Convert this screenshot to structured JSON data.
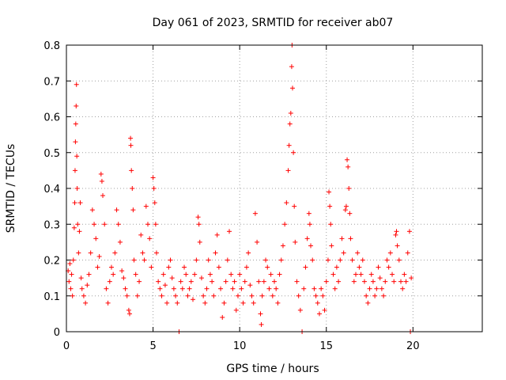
{
  "chart_data": {
    "type": "scatter",
    "title": "Day 061 of 2023, SRMTID for receiver ab07",
    "xlabel": "GPS time / hours",
    "ylabel": "SRMTID / TECUs",
    "xlim": [
      0,
      24
    ],
    "ylim": [
      0,
      0.8
    ],
    "xticks": [
      0,
      5,
      10,
      15,
      20
    ],
    "yticks": [
      0,
      0.1,
      0.2,
      0.3,
      0.4,
      0.5,
      0.6,
      0.7,
      0.8
    ],
    "grid": true,
    "marker": "+",
    "color": "#ff0000",
    "series": [
      {
        "name": "SRMTID",
        "points": [
          [
            0.1,
            0.17
          ],
          [
            0.15,
            0.14
          ],
          [
            0.2,
            0.19
          ],
          [
            0.25,
            0.12
          ],
          [
            0.3,
            0.16
          ],
          [
            0.35,
            0.1
          ],
          [
            0.4,
            0.2
          ],
          [
            0.45,
            0.29
          ],
          [
            0.48,
            0.36
          ],
          [
            0.5,
            0.45
          ],
          [
            0.52,
            0.53
          ],
          [
            0.54,
            0.58
          ],
          [
            0.56,
            0.63
          ],
          [
            0.58,
            0.69
          ],
          [
            0.6,
            0.49
          ],
          [
            0.62,
            0.4
          ],
          [
            0.65,
            0.3
          ],
          [
            0.7,
            0.22
          ],
          [
            0.75,
            0.28
          ],
          [
            0.8,
            0.36
          ],
          [
            0.85,
            0.15
          ],
          [
            0.9,
            0.12
          ],
          [
            1.0,
            0.1
          ],
          [
            1.1,
            0.08
          ],
          [
            1.2,
            0.13
          ],
          [
            1.3,
            0.16
          ],
          [
            1.4,
            0.22
          ],
          [
            1.5,
            0.34
          ],
          [
            1.6,
            0.3
          ],
          [
            1.7,
            0.26
          ],
          [
            1.8,
            0.18
          ],
          [
            1.9,
            0.21
          ],
          [
            2.0,
            0.44
          ],
          [
            2.05,
            0.42
          ],
          [
            2.1,
            0.38
          ],
          [
            2.2,
            0.3
          ],
          [
            2.3,
            0.12
          ],
          [
            2.4,
            0.08
          ],
          [
            2.5,
            0.14
          ],
          [
            2.6,
            0.18
          ],
          [
            2.7,
            0.16
          ],
          [
            2.8,
            0.22
          ],
          [
            2.9,
            0.34
          ],
          [
            3.0,
            0.3
          ],
          [
            3.1,
            0.25
          ],
          [
            3.2,
            0.17
          ],
          [
            3.3,
            0.15
          ],
          [
            3.4,
            0.12
          ],
          [
            3.5,
            0.1
          ],
          [
            3.6,
            0.06
          ],
          [
            3.65,
            0.05
          ],
          [
            3.7,
            0.54
          ],
          [
            3.72,
            0.52
          ],
          [
            3.75,
            0.45
          ],
          [
            3.8,
            0.4
          ],
          [
            3.85,
            0.34
          ],
          [
            3.9,
            0.2
          ],
          [
            4.0,
            0.16
          ],
          [
            4.1,
            0.1
          ],
          [
            4.2,
            0.14
          ],
          [
            4.3,
            0.27
          ],
          [
            4.4,
            0.22
          ],
          [
            4.5,
            0.2
          ],
          [
            4.6,
            0.35
          ],
          [
            4.7,
            0.3
          ],
          [
            4.8,
            0.26
          ],
          [
            4.9,
            0.18
          ],
          [
            5.0,
            0.43
          ],
          [
            5.05,
            0.4
          ],
          [
            5.1,
            0.36
          ],
          [
            5.15,
            0.3
          ],
          [
            5.2,
            0.22
          ],
          [
            5.3,
            0.14
          ],
          [
            5.4,
            0.12
          ],
          [
            5.5,
            0.1
          ],
          [
            5.6,
            0.16
          ],
          [
            5.7,
            0.13
          ],
          [
            5.8,
            0.08
          ],
          [
            5.9,
            0.18
          ],
          [
            6.0,
            0.2
          ],
          [
            6.1,
            0.15
          ],
          [
            6.2,
            0.12
          ],
          [
            6.3,
            0.1
          ],
          [
            6.4,
            0.08
          ],
          [
            6.5,
            0.0
          ],
          [
            6.6,
            0.14
          ],
          [
            6.7,
            0.12
          ],
          [
            6.8,
            0.18
          ],
          [
            6.9,
            0.16
          ],
          [
            7.0,
            0.1
          ],
          [
            7.1,
            0.12
          ],
          [
            7.2,
            0.14
          ],
          [
            7.3,
            0.09
          ],
          [
            7.4,
            0.16
          ],
          [
            7.5,
            0.2
          ],
          [
            7.6,
            0.32
          ],
          [
            7.65,
            0.3
          ],
          [
            7.7,
            0.25
          ],
          [
            7.8,
            0.15
          ],
          [
            7.9,
            0.1
          ],
          [
            8.0,
            0.08
          ],
          [
            8.1,
            0.12
          ],
          [
            8.2,
            0.2
          ],
          [
            8.3,
            0.16
          ],
          [
            8.4,
            0.14
          ],
          [
            8.5,
            0.1
          ],
          [
            8.6,
            0.22
          ],
          [
            8.7,
            0.27
          ],
          [
            8.8,
            0.18
          ],
          [
            8.9,
            0.12
          ],
          [
            9.0,
            0.04
          ],
          [
            9.1,
            0.08
          ],
          [
            9.2,
            0.14
          ],
          [
            9.3,
            0.2
          ],
          [
            9.4,
            0.28
          ],
          [
            9.5,
            0.16
          ],
          [
            9.6,
            0.12
          ],
          [
            9.7,
            0.14
          ],
          [
            9.8,
            0.06
          ],
          [
            9.9,
            0.1
          ],
          [
            10.0,
            0.16
          ],
          [
            10.1,
            0.12
          ],
          [
            10.2,
            0.08
          ],
          [
            10.3,
            0.14
          ],
          [
            10.4,
            0.18
          ],
          [
            10.5,
            0.22
          ],
          [
            10.6,
            0.13
          ],
          [
            10.7,
            0.1
          ],
          [
            10.8,
            0.08
          ],
          [
            10.9,
            0.33
          ],
          [
            11.0,
            0.25
          ],
          [
            11.1,
            0.14
          ],
          [
            11.2,
            0.05
          ],
          [
            11.25,
            0.02
          ],
          [
            11.3,
            0.1
          ],
          [
            11.4,
            0.14
          ],
          [
            11.5,
            0.2
          ],
          [
            11.6,
            0.18
          ],
          [
            11.7,
            0.12
          ],
          [
            11.8,
            0.16
          ],
          [
            11.9,
            0.1
          ],
          [
            12.0,
            0.14
          ],
          [
            12.1,
            0.12
          ],
          [
            12.2,
            0.08
          ],
          [
            12.3,
            0.16
          ],
          [
            12.4,
            0.2
          ],
          [
            12.5,
            0.24
          ],
          [
            12.6,
            0.3
          ],
          [
            12.7,
            0.36
          ],
          [
            12.8,
            0.45
          ],
          [
            12.85,
            0.52
          ],
          [
            12.9,
            0.58
          ],
          [
            12.95,
            0.61
          ],
          [
            13.0,
            0.74
          ],
          [
            13.02,
            0.8
          ],
          [
            13.05,
            0.68
          ],
          [
            13.1,
            0.5
          ],
          [
            13.15,
            0.35
          ],
          [
            13.2,
            0.25
          ],
          [
            13.3,
            0.14
          ],
          [
            13.4,
            0.1
          ],
          [
            13.5,
            0.06
          ],
          [
            13.6,
            0.0
          ],
          [
            13.7,
            0.12
          ],
          [
            13.8,
            0.18
          ],
          [
            13.9,
            0.26
          ],
          [
            14.0,
            0.33
          ],
          [
            14.05,
            0.3
          ],
          [
            14.1,
            0.24
          ],
          [
            14.2,
            0.2
          ],
          [
            14.3,
            0.12
          ],
          [
            14.4,
            0.1
          ],
          [
            14.5,
            0.08
          ],
          [
            14.6,
            0.05
          ],
          [
            14.7,
            0.12
          ],
          [
            14.8,
            0.1
          ],
          [
            14.9,
            0.06
          ],
          [
            15.0,
            0.14
          ],
          [
            15.1,
            0.2
          ],
          [
            15.15,
            0.39
          ],
          [
            15.2,
            0.35
          ],
          [
            15.25,
            0.3
          ],
          [
            15.3,
            0.24
          ],
          [
            15.4,
            0.16
          ],
          [
            15.5,
            0.12
          ],
          [
            15.6,
            0.18
          ],
          [
            15.7,
            0.14
          ],
          [
            15.8,
            0.2
          ],
          [
            15.9,
            0.26
          ],
          [
            16.0,
            0.22
          ],
          [
            16.1,
            0.34
          ],
          [
            16.15,
            0.35
          ],
          [
            16.2,
            0.48
          ],
          [
            16.25,
            0.46
          ],
          [
            16.3,
            0.4
          ],
          [
            16.35,
            0.33
          ],
          [
            16.4,
            0.26
          ],
          [
            16.5,
            0.2
          ],
          [
            16.6,
            0.14
          ],
          [
            16.7,
            0.16
          ],
          [
            16.8,
            0.22
          ],
          [
            16.9,
            0.18
          ],
          [
            17.0,
            0.16
          ],
          [
            17.1,
            0.2
          ],
          [
            17.2,
            0.14
          ],
          [
            17.3,
            0.1
          ],
          [
            17.4,
            0.08
          ],
          [
            17.5,
            0.12
          ],
          [
            17.6,
            0.16
          ],
          [
            17.7,
            0.14
          ],
          [
            17.8,
            0.1
          ],
          [
            17.9,
            0.12
          ],
          [
            18.0,
            0.18
          ],
          [
            18.1,
            0.15
          ],
          [
            18.2,
            0.12
          ],
          [
            18.3,
            0.1
          ],
          [
            18.4,
            0.14
          ],
          [
            18.5,
            0.2
          ],
          [
            18.6,
            0.18
          ],
          [
            18.7,
            0.22
          ],
          [
            18.8,
            0.16
          ],
          [
            18.9,
            0.14
          ],
          [
            19.0,
            0.27
          ],
          [
            19.05,
            0.28
          ],
          [
            19.1,
            0.24
          ],
          [
            19.2,
            0.2
          ],
          [
            19.3,
            0.14
          ],
          [
            19.4,
            0.12
          ],
          [
            19.5,
            0.16
          ],
          [
            19.6,
            0.14
          ],
          [
            19.7,
            0.22
          ],
          [
            19.8,
            0.28
          ],
          [
            19.85,
            0.0
          ],
          [
            19.9,
            0.15
          ]
        ]
      }
    ]
  }
}
